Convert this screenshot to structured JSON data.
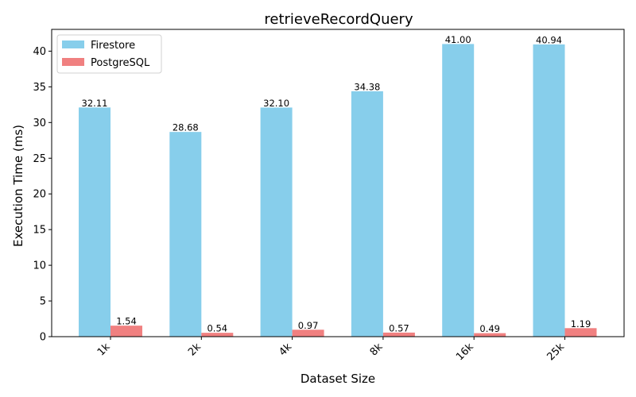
{
  "chart_data": {
    "type": "bar",
    "title": "retrieveRecordQuery",
    "xlabel": "Dataset Size",
    "ylabel": "Execution Time (ms)",
    "categories": [
      "1k",
      "2k",
      "4k",
      "8k",
      "16k",
      "25k"
    ],
    "ylim": [
      0,
      43.05
    ],
    "yticks": [
      0,
      5,
      10,
      15,
      20,
      25,
      30,
      35,
      40
    ],
    "grid": false,
    "legend_position": "top-left",
    "series": [
      {
        "name": "Firestore",
        "color": "#87ceeb",
        "values": [
          32.11,
          28.68,
          32.1,
          34.38,
          41.0,
          40.94
        ],
        "labels": [
          "32.11",
          "28.68",
          "32.10",
          "34.38",
          "41.00",
          "40.94"
        ]
      },
      {
        "name": "PostgreSQL",
        "color": "#f08080",
        "values": [
          1.54,
          0.54,
          0.97,
          0.57,
          0.49,
          1.19
        ],
        "labels": [
          "1.54",
          "0.54",
          "0.97",
          "0.57",
          "0.49",
          "1.19"
        ]
      }
    ]
  }
}
